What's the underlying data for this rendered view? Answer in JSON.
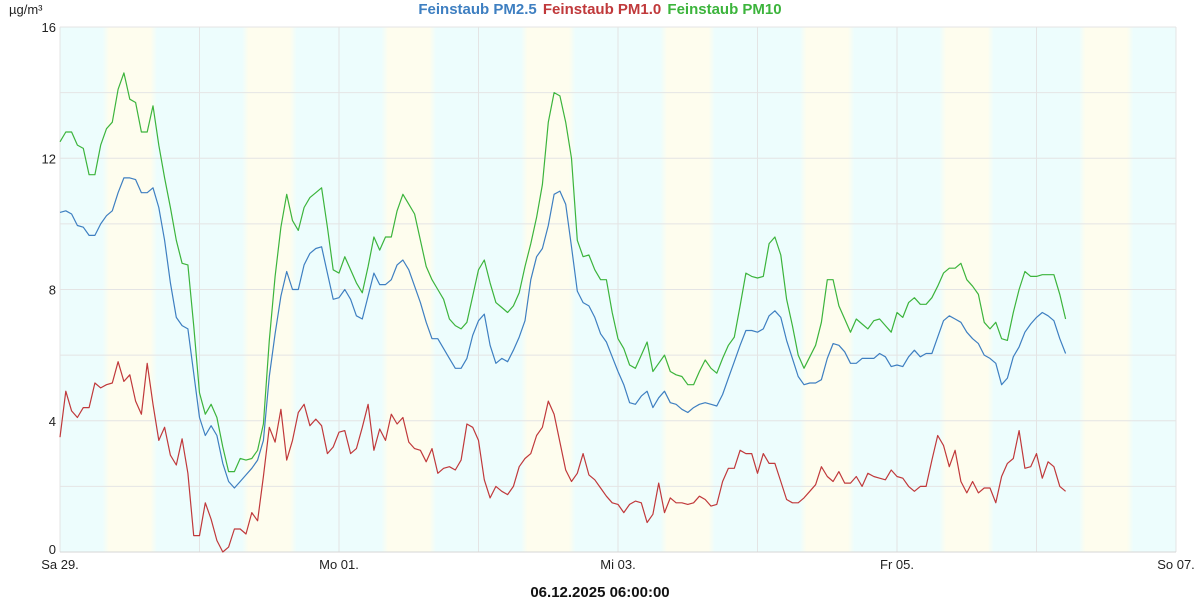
{
  "chart_data": {
    "type": "line",
    "title": "Feinstaub PM2.5 Feinstaub PM1.0 Feinstaub PM10",
    "ylabel": "µg/m³",
    "xlabel": "06.12.2025 06:00:00",
    "ylim": [
      0,
      16
    ],
    "y_ticks": [
      "0",
      "4",
      "8",
      "12",
      "16"
    ],
    "y_tick_values": [
      0,
      4,
      8,
      12,
      16
    ],
    "y_grid_step": 2,
    "x_unit": "hours since Sa 29. 00:00",
    "xlim_hours": [
      0,
      192
    ],
    "x_ticks": [
      {
        "label": "Sa 29.",
        "hour": 0
      },
      {
        "label": "Mo 01.",
        "hour": 48
      },
      {
        "label": "Mi 03.",
        "hour": 96
      },
      {
        "label": "Fr 05.",
        "hour": 144
      },
      {
        "label": "So 07.",
        "hour": 192
      }
    ],
    "x_grid_step_hours": 24,
    "day_bands": {
      "day_color": "#fefdee",
      "night_color": "#edfdfd",
      "day_start_hour": 8,
      "day_end_hour": 16
    },
    "grid": true,
    "legend_position": "top-center",
    "sample_interval_hours": 1,
    "series": [
      {
        "name": "Feinstaub PM2.5",
        "color": "#3e7fc1",
        "values": [
          10.35,
          10.4,
          10.3,
          9.95,
          9.9,
          9.65,
          9.65,
          10.0,
          10.25,
          10.4,
          10.95,
          11.4,
          11.4,
          11.35,
          10.95,
          10.95,
          11.1,
          10.5,
          9.5,
          8.2,
          7.15,
          6.9,
          6.8,
          5.45,
          4.1,
          3.55,
          3.85,
          3.55,
          2.7,
          2.15,
          1.95,
          2.15,
          2.35,
          2.55,
          2.8,
          3.4,
          5.35,
          6.65,
          7.8,
          8.55,
          8.0,
          8.0,
          8.75,
          9.1,
          9.25,
          9.3,
          8.5,
          7.7,
          7.75,
          8.0,
          7.7,
          7.2,
          7.1,
          7.8,
          8.5,
          8.15,
          8.15,
          8.3,
          8.75,
          8.9,
          8.6,
          8.1,
          7.6,
          7.0,
          6.5,
          6.5,
          6.2,
          5.9,
          5.6,
          5.6,
          5.9,
          6.6,
          7.05,
          7.25,
          6.3,
          5.75,
          5.9,
          5.8,
          6.15,
          6.55,
          7.05,
          8.3,
          9.0,
          9.25,
          9.95,
          10.9,
          11.0,
          10.6,
          9.3,
          7.95,
          7.6,
          7.5,
          7.15,
          6.65,
          6.4,
          5.95,
          5.5,
          5.1,
          4.55,
          4.5,
          4.75,
          4.9,
          4.4,
          4.7,
          4.9,
          4.55,
          4.5,
          4.35,
          4.25,
          4.4,
          4.5,
          4.55,
          4.5,
          4.45,
          4.8,
          5.3,
          5.8,
          6.3,
          6.75,
          6.75,
          6.7,
          6.8,
          7.2,
          7.35,
          7.15,
          6.45,
          5.9,
          5.35,
          5.1,
          5.15,
          5.15,
          5.25,
          5.9,
          6.35,
          6.3,
          6.1,
          5.75,
          5.75,
          5.9,
          5.9,
          5.9,
          6.05,
          5.95,
          5.65,
          5.7,
          5.65,
          5.95,
          6.15,
          5.95,
          6.05,
          6.05,
          6.55,
          7.05,
          7.2,
          7.1,
          7.0,
          6.7,
          6.5,
          6.35,
          6.0,
          5.9,
          5.75,
          5.1,
          5.3,
          5.95,
          6.25,
          6.7,
          6.95,
          7.15,
          7.3,
          7.2,
          7.05,
          6.5,
          6.05
        ]
      },
      {
        "name": "Feinstaub PM1.0",
        "color": "#c0393b",
        "values": [
          3.5,
          4.9,
          4.3,
          4.1,
          4.4,
          4.4,
          5.15,
          5.0,
          5.1,
          5.15,
          5.8,
          5.2,
          5.4,
          4.6,
          4.2,
          5.75,
          4.5,
          3.4,
          3.8,
          2.95,
          2.65,
          3.45,
          2.4,
          0.5,
          0.5,
          1.5,
          1.0,
          0.35,
          0.0,
          0.15,
          0.7,
          0.7,
          0.55,
          1.2,
          0.95,
          2.3,
          3.8,
          3.35,
          4.35,
          2.8,
          3.4,
          4.25,
          4.5,
          3.85,
          4.05,
          3.85,
          3.0,
          3.2,
          3.65,
          3.7,
          3.0,
          3.15,
          3.8,
          4.5,
          3.1,
          3.75,
          3.4,
          4.2,
          3.9,
          4.1,
          3.35,
          3.15,
          3.1,
          2.75,
          3.15,
          2.4,
          2.55,
          2.6,
          2.5,
          2.8,
          3.9,
          3.8,
          3.4,
          2.2,
          1.65,
          2.0,
          1.85,
          1.75,
          2.0,
          2.6,
          2.85,
          3.0,
          3.55,
          3.8,
          4.6,
          4.2,
          3.35,
          2.5,
          2.15,
          2.4,
          3.0,
          2.35,
          2.2,
          1.95,
          1.7,
          1.5,
          1.45,
          1.2,
          1.45,
          1.55,
          1.5,
          0.9,
          1.15,
          2.1,
          1.2,
          1.65,
          1.5,
          1.5,
          1.45,
          1.5,
          1.7,
          1.6,
          1.4,
          1.45,
          2.15,
          2.55,
          2.55,
          3.1,
          3.0,
          3.0,
          2.4,
          3.0,
          2.7,
          2.7,
          2.15,
          1.6,
          1.5,
          1.5,
          1.65,
          1.85,
          2.05,
          2.6,
          2.3,
          2.15,
          2.45,
          2.1,
          2.1,
          2.3,
          2.0,
          2.4,
          2.3,
          2.25,
          2.2,
          2.5,
          2.3,
          2.25,
          2.0,
          1.85,
          2.0,
          2.0,
          2.8,
          3.55,
          3.25,
          2.6,
          3.1,
          2.15,
          1.8,
          2.15,
          1.8,
          1.95,
          1.95,
          1.5,
          2.3,
          2.7,
          2.85,
          3.7,
          2.55,
          2.6,
          3.0,
          2.25,
          2.75,
          2.6,
          2.0,
          1.85
        ]
      },
      {
        "name": "Feinstaub PM10",
        "color": "#3cb43c",
        "values": [
          12.5,
          12.8,
          12.8,
          12.4,
          12.3,
          11.5,
          11.5,
          12.4,
          12.9,
          13.1,
          14.1,
          14.6,
          13.8,
          13.7,
          12.8,
          12.8,
          13.6,
          12.4,
          11.4,
          10.5,
          9.5,
          8.8,
          8.75,
          6.9,
          4.85,
          4.2,
          4.5,
          4.1,
          3.2,
          2.45,
          2.45,
          2.85,
          2.8,
          2.85,
          3.1,
          3.9,
          6.45,
          8.4,
          9.9,
          10.9,
          10.1,
          9.8,
          10.5,
          10.8,
          10.95,
          11.1,
          9.9,
          8.6,
          8.5,
          9.0,
          8.6,
          8.2,
          7.9,
          8.7,
          9.6,
          9.2,
          9.6,
          9.6,
          10.4,
          10.9,
          10.6,
          10.3,
          9.5,
          8.7,
          8.3,
          8.0,
          7.7,
          7.1,
          6.9,
          6.8,
          7.0,
          7.8,
          8.6,
          8.9,
          8.2,
          7.6,
          7.45,
          7.3,
          7.5,
          7.9,
          8.7,
          9.4,
          10.2,
          11.2,
          13.1,
          14.0,
          13.9,
          13.1,
          12.0,
          9.5,
          9.0,
          9.05,
          8.6,
          8.3,
          8.3,
          7.3,
          6.5,
          6.2,
          5.7,
          5.6,
          6.0,
          6.4,
          5.5,
          5.75,
          6.0,
          5.5,
          5.4,
          5.35,
          5.1,
          5.1,
          5.5,
          5.85,
          5.6,
          5.45,
          5.9,
          6.3,
          6.55,
          7.5,
          8.5,
          8.4,
          8.35,
          8.4,
          9.4,
          9.6,
          9.05,
          7.7,
          6.9,
          6.0,
          5.6,
          5.95,
          6.3,
          7.0,
          8.3,
          8.3,
          7.5,
          7.1,
          6.7,
          7.1,
          6.95,
          6.8,
          7.05,
          7.1,
          6.9,
          6.7,
          7.3,
          7.15,
          7.6,
          7.75,
          7.55,
          7.55,
          7.75,
          8.1,
          8.5,
          8.65,
          8.65,
          8.8,
          8.3,
          8.1,
          7.85,
          7.0,
          6.8,
          7.0,
          6.5,
          6.45,
          7.3,
          8.0,
          8.55,
          8.4,
          8.4,
          8.45,
          8.45,
          8.45,
          7.85,
          7.1
        ]
      }
    ]
  }
}
